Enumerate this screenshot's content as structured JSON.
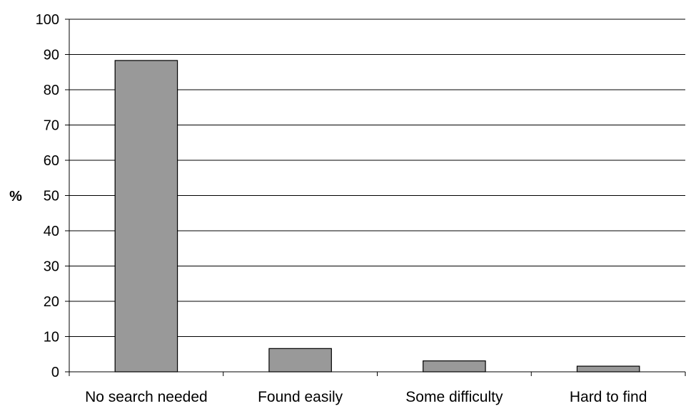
{
  "chart_data": {
    "type": "bar",
    "title": "",
    "xlabel": "",
    "ylabel": "%",
    "categories": [
      "No search needed",
      "Found easily",
      "Some difficulty",
      "Hard to find"
    ],
    "values": [
      88.3,
      6.6,
      3.1,
      1.6
    ],
    "ylim": [
      0,
      100
    ],
    "yticks": [
      0,
      10,
      20,
      30,
      40,
      50,
      60,
      70,
      80,
      90,
      100
    ],
    "grid": "horizontal",
    "legend": "none",
    "bar_color": "#999999",
    "bar_edge_color": "#000000"
  }
}
